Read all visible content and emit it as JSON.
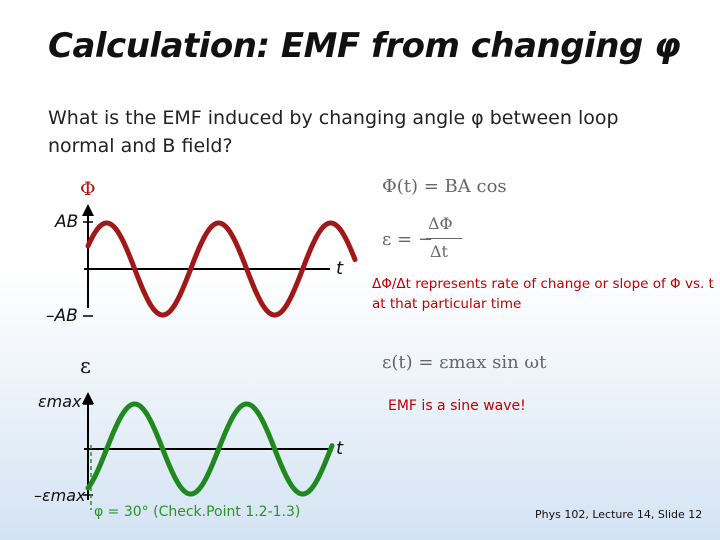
{
  "title": "Calculation: EMF from changing φ",
  "question": "What is the EMF induced by changing angle φ between loop normal and B field?",
  "graph_top": {
    "y_axis_symbol": "Φ",
    "y_max_label": "AB",
    "y_min_label": "–AB",
    "x_axis_label": "t",
    "curve_color": "#a01818"
  },
  "graph_bottom": {
    "y_axis_symbol": "ε",
    "y_max_label": "εmax",
    "y_min_label": "–εmax",
    "x_axis_label": "t",
    "curve_color": "#1e8a1e",
    "phase_label": "φ = 30° (Check.Point 1.2-1.3)"
  },
  "equations": {
    "flux": "Φ(t) = BA cos",
    "emf_lhs": "ε = −",
    "emf_num": "ΔΦ",
    "emf_den": "Δt",
    "sine": "ε(t) = εmax sin ωt"
  },
  "notes": {
    "slope_note": "ΔΦ/Δt represents rate of change or slope of Φ vs. t at that particular time",
    "sine_note": "EMF is a sine wave!"
  },
  "footer": "Phys 102, Lecture 14, Slide 12"
}
